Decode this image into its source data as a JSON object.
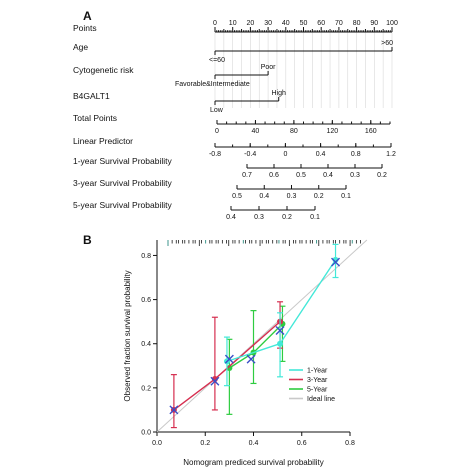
{
  "panels": {
    "a_label": "A",
    "b_label": "B"
  },
  "colors": {
    "y1": "#43e8d8",
    "y3": "#d62f50",
    "y5": "#2ecc40",
    "ideal": "#c9c9c9",
    "cross": "#3a4fc8"
  },
  "chart_data": [
    {
      "type": "nomogram",
      "scale_range": [
        0,
        100
      ],
      "rows": [
        {
          "label": "Points",
          "ticks": [
            "0",
            "10",
            "20",
            "30",
            "40",
            "50",
            "60",
            "70",
            "80",
            "90",
            "100"
          ],
          "values": [
            0,
            10,
            20,
            30,
            40,
            50,
            60,
            70,
            80,
            90,
            100
          ]
        },
        {
          "label": "Age",
          "levels": [
            {
              "name": "<=60",
              "points": 0
            },
            {
              "name": ">60",
              "points": 100
            }
          ]
        },
        {
          "label": "Cytogenetic risk",
          "levels": [
            {
              "name": "Favorable&Intermediate",
              "points": 0
            },
            {
              "name": "Poor",
              "points": 30
            }
          ]
        },
        {
          "label": "B4GALT1",
          "levels": [
            {
              "name": "Low",
              "points": 0
            },
            {
              "name": "High",
              "points": 36
            }
          ]
        },
        {
          "label": "Total Points",
          "ticks": [
            "0",
            "40",
            "80",
            "120",
            "160"
          ],
          "values": [
            0,
            40,
            80,
            120,
            160
          ],
          "range": [
            0,
            180
          ]
        },
        {
          "label": "Linear Predictor",
          "ticks": [
            "-0.8",
            "-0.4",
            "0",
            "0.4",
            "0.8",
            "1.2"
          ],
          "values": [
            -0.8,
            -0.4,
            0,
            0.4,
            0.8,
            1.2
          ]
        },
        {
          "label": "1-year Survival Probability",
          "ticks": [
            "0.7",
            "0.6",
            "0.5",
            "0.4",
            "0.3",
            "0.2"
          ],
          "values": [
            0.7,
            0.6,
            0.5,
            0.4,
            0.3,
            0.2
          ]
        },
        {
          "label": "3-year Survival Probability",
          "ticks": [
            "0.5",
            "0.4",
            "0.3",
            "0.2",
            "0.1"
          ],
          "values": [
            0.5,
            0.4,
            0.3,
            0.2,
            0.1
          ]
        },
        {
          "label": "5-year Survival Probability",
          "ticks": [
            "0.4",
            "0.3",
            "0.2",
            "0.1"
          ],
          "values": [
            0.4,
            0.3,
            0.2,
            0.1
          ]
        }
      ]
    },
    {
      "type": "line",
      "xlabel": "Nomogram prediced survival probability",
      "ylabel": "Observed fraction survival probability",
      "xlim": [
        0,
        0.8
      ],
      "ylim": [
        0,
        0.87
      ],
      "xticks": [
        "0.0",
        "0.2",
        "0.4",
        "0.6",
        "0.8"
      ],
      "yticks": [
        "0.0",
        "0.2",
        "0.4",
        "0.6",
        "0.8"
      ],
      "legend_position": "bottom-right",
      "series": [
        {
          "name": "1-Year",
          "color": "#43e8d8",
          "points": [
            {
              "x": 0.29,
              "y": 0.32,
              "lo": 0.21,
              "hi": 0.43
            },
            {
              "x": 0.51,
              "y": 0.4,
              "lo": 0.25,
              "hi": 0.54
            },
            {
              "x": 0.74,
              "y": 0.78,
              "lo": 0.7,
              "hi": 0.85
            }
          ]
        },
        {
          "name": "3-Year",
          "color": "#d62f50",
          "points": [
            {
              "x": 0.07,
              "y": 0.1,
              "lo": 0.02,
              "hi": 0.26
            },
            {
              "x": 0.24,
              "y": 0.24,
              "lo": 0.1,
              "hi": 0.52
            },
            {
              "x": 0.51,
              "y": 0.5,
              "lo": 0.38,
              "hi": 0.59
            }
          ]
        },
        {
          "name": "5-Year",
          "color": "#2ecc40",
          "points": [
            {
              "x": 0.3,
              "y": 0.29,
              "lo": 0.08,
              "hi": 0.42
            },
            {
              "x": 0.4,
              "y": 0.36,
              "lo": 0.22,
              "hi": 0.55
            },
            {
              "x": 0.52,
              "y": 0.49,
              "lo": 0.32,
              "hi": 0.57
            }
          ]
        },
        {
          "name": "Ideal line",
          "color": "#c9c9c9",
          "points": [
            {
              "x": 0,
              "y": 0
            },
            {
              "x": 0.87,
              "y": 0.87
            }
          ]
        }
      ],
      "crosses": [
        {
          "x": 0.07,
          "y": 0.1
        },
        {
          "x": 0.24,
          "y": 0.23
        },
        {
          "x": 0.3,
          "y": 0.33
        },
        {
          "x": 0.39,
          "y": 0.33
        },
        {
          "x": 0.51,
          "y": 0.46
        },
        {
          "x": 0.74,
          "y": 0.77
        }
      ]
    }
  ]
}
